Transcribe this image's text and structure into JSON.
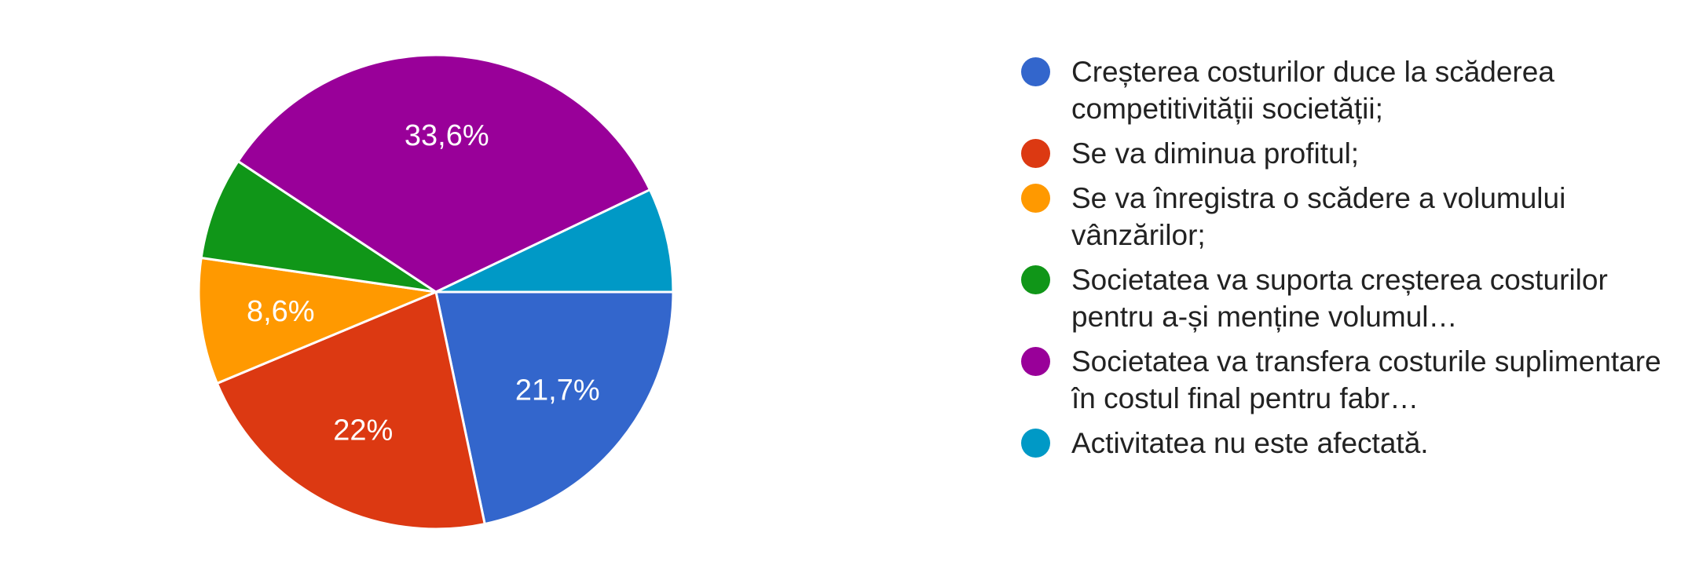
{
  "chart_data": {
    "type": "pie",
    "slices": [
      {
        "label": "Creșterea costurilor duce la scăderea competitivității societății;",
        "value": 21.7,
        "display": "21,7%",
        "color": "#3366cc"
      },
      {
        "label": "Se va diminua profitul;",
        "value": 22.0,
        "display": "22%",
        "color": "#dc3912"
      },
      {
        "label": "Se va înregistra o scădere a volumului vânzărilor;",
        "value": 8.6,
        "display": "8,6%",
        "color": "#ff9900"
      },
      {
        "label": "Societatea va suporta creșterea costurilor pentru a-și menține volumul…",
        "value": 7.0,
        "display": "",
        "color": "#109618"
      },
      {
        "label": "Societatea va transfera costurile suplimentare în costul final pentru fabr…",
        "value": 33.6,
        "display": "33,6%",
        "color": "#990099"
      },
      {
        "label": "Activitatea nu este afectată.",
        "value": 7.1,
        "display": "",
        "color": "#0099c6"
      }
    ],
    "legend_position": "right"
  }
}
